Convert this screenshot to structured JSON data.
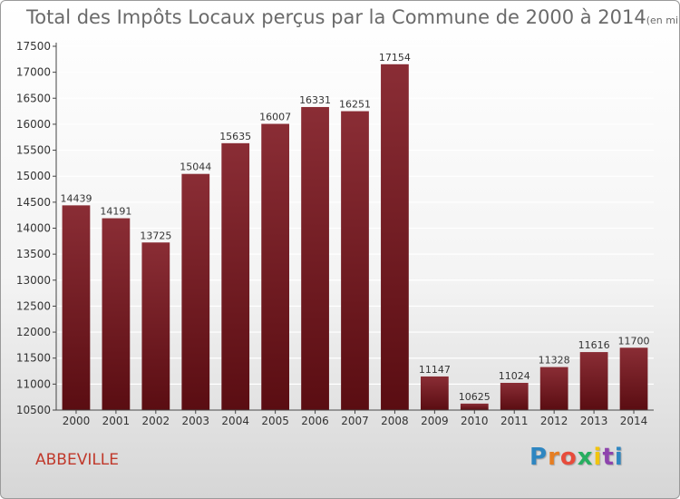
{
  "header": {
    "title": "Total des Impôts Locaux perçus par la Commune de 2000 à 2014",
    "unit": "(en milliers d'€)"
  },
  "footer": {
    "commune": "ABBEVILLE",
    "logo": [
      "P",
      "r",
      "o",
      "x",
      "i",
      "t",
      "i"
    ]
  },
  "chart_data": {
    "type": "bar",
    "title": "Total des Impôts Locaux perçus par la Commune de 2000 à 2014",
    "xlabel": "",
    "ylabel": "",
    "categories": [
      "2000",
      "2001",
      "2002",
      "2003",
      "2004",
      "2005",
      "2006",
      "2007",
      "2008",
      "2009",
      "2010",
      "2011",
      "2012",
      "2013",
      "2014"
    ],
    "values": [
      14439,
      14191,
      13725,
      15044,
      15635,
      16007,
      16331,
      16251,
      17154,
      11147,
      10625,
      11024,
      11328,
      11616,
      11700
    ],
    "ylim": [
      10500,
      17500
    ],
    "yticks": [
      10500,
      11000,
      11500,
      12000,
      12500,
      13000,
      13500,
      14000,
      14500,
      15000,
      15500,
      16000,
      16500,
      17000,
      17500
    ],
    "grid": true,
    "colors": {
      "bar_top": "#8a2d35",
      "bar_bottom": "#5a0d12",
      "grid": "#ffffff",
      "axis": "#444444"
    }
  }
}
